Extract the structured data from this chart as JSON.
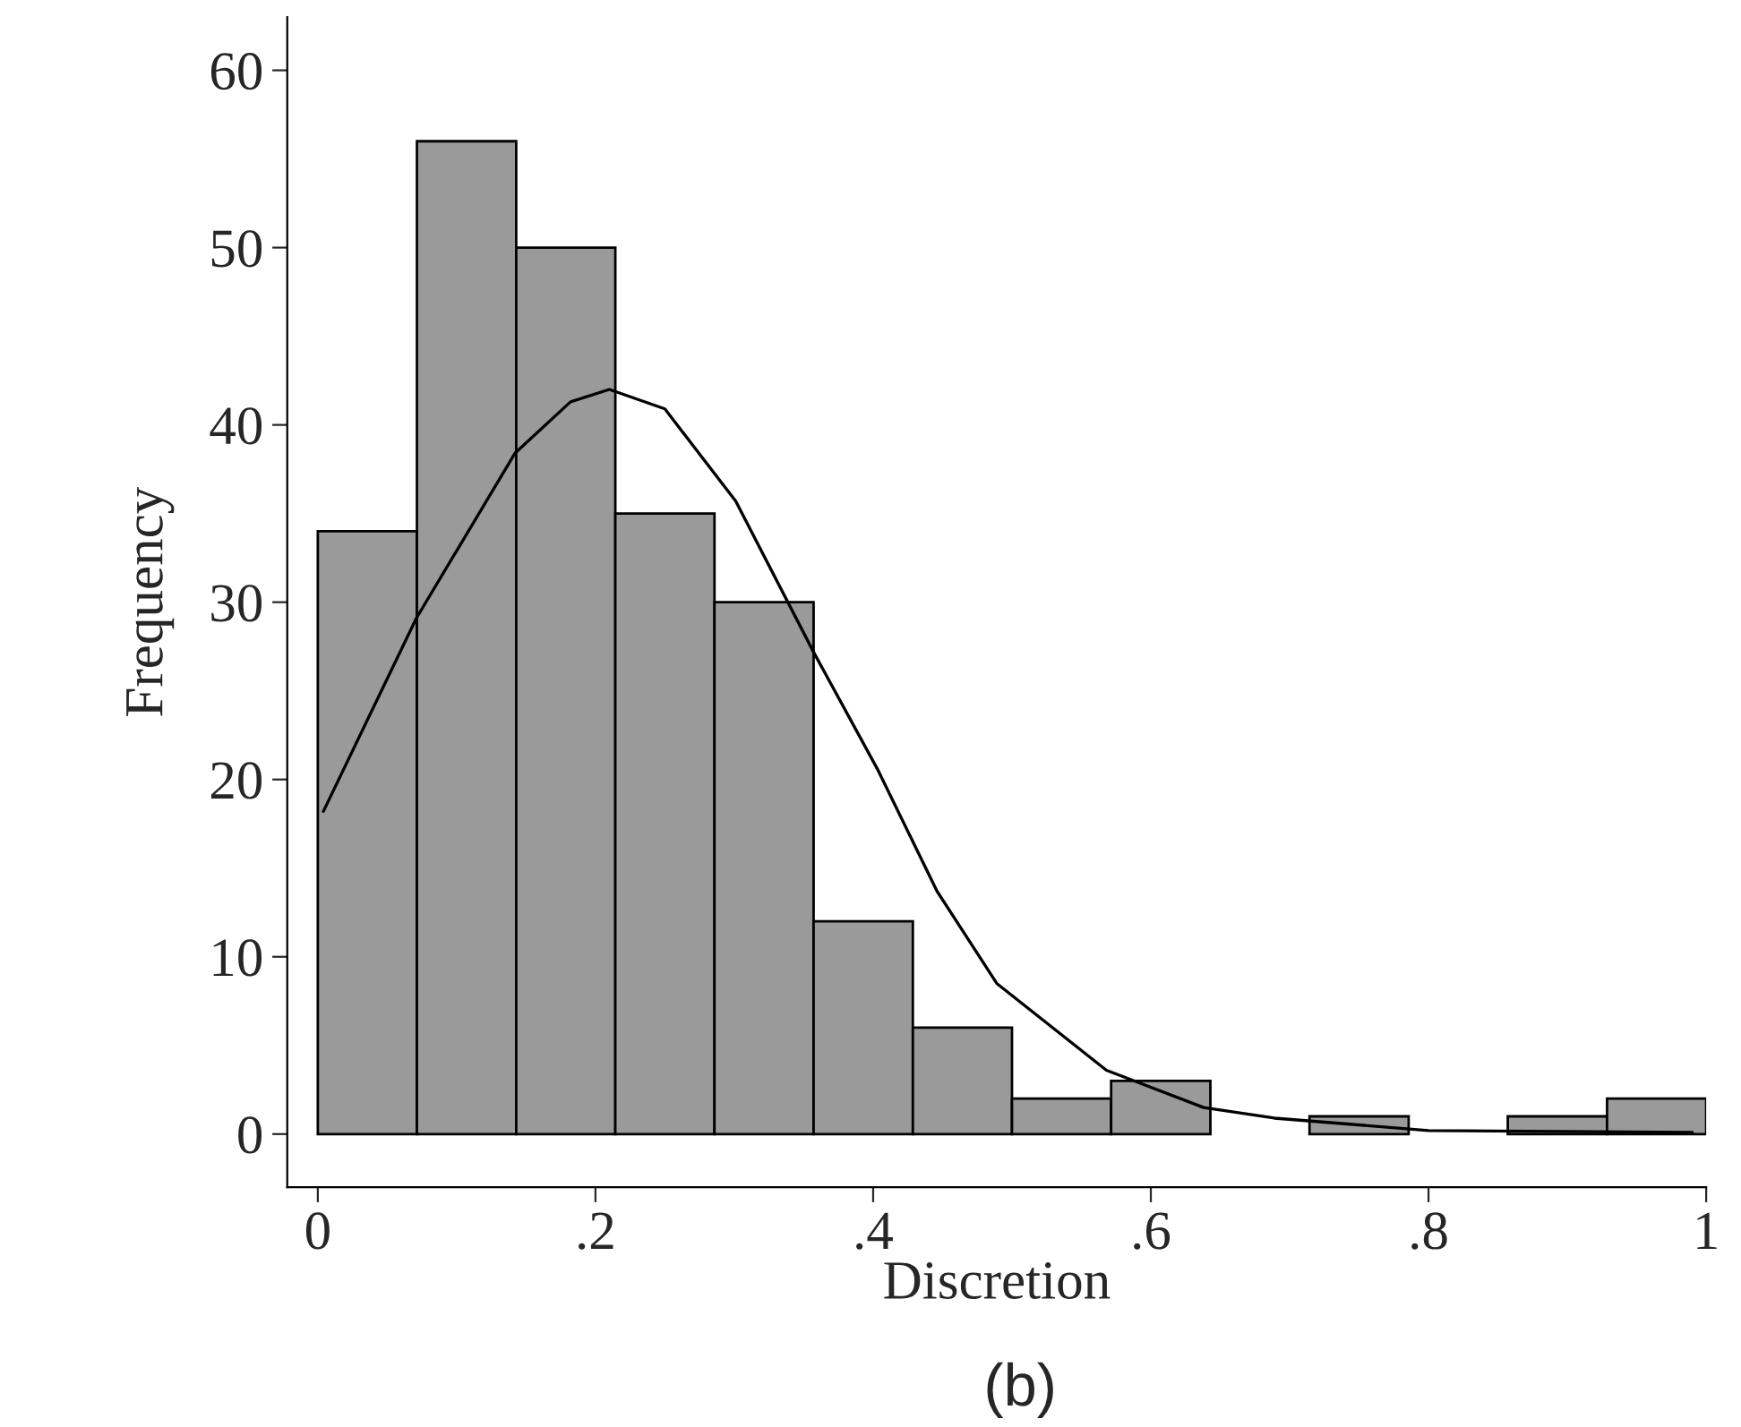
{
  "chart_data": {
    "type": "histogram",
    "xlabel": "Discretion",
    "ylabel": "Frequency",
    "annotations": [
      "(b)"
    ],
    "bins": [
      0,
      0.0714,
      0.1429,
      0.2143,
      0.2857,
      0.3571,
      0.4286,
      0.5,
      0.5714,
      0.6429,
      0.7143,
      0.7857,
      0.8571,
      0.9286,
      1
    ],
    "values": [
      34,
      56,
      50,
      35,
      30,
      12,
      6,
      2,
      3,
      0,
      1,
      0,
      1,
      2
    ],
    "color": "#9a9a9a",
    "series": [
      {
        "type": "line",
        "color": "#000000",
        "x": [
          0.004,
          0.071,
          0.142,
          0.182,
          0.21,
          0.25,
          0.301,
          0.357,
          0.403,
          0.446,
          0.489,
          0.568,
          0.638,
          0.689,
          0.8,
          0.99
        ],
        "values": [
          18.2,
          29.1,
          38.4,
          41.3,
          42,
          40.9,
          35.7,
          27.2,
          20.6,
          13.7,
          8.5,
          3.6,
          1.5,
          0.9,
          0.2,
          0.1
        ]
      }
    ],
    "xlim": [
      -0.022,
      1.0
    ],
    "ylim": [
      -3,
      63
    ],
    "xticks": [
      0,
      {
        "value": 0.2,
        "label": ".2"
      },
      {
        "value": 0.4,
        "label": ".4"
      },
      {
        "value": 0.6,
        "label": ".6"
      },
      {
        "value": 0.8,
        "label": ".8"
      },
      1
    ],
    "yticks": [
      0,
      10,
      20,
      30,
      40,
      50,
      60
    ],
    "grid": false,
    "legend": false,
    "marker": "none",
    "line_style": "solid"
  }
}
